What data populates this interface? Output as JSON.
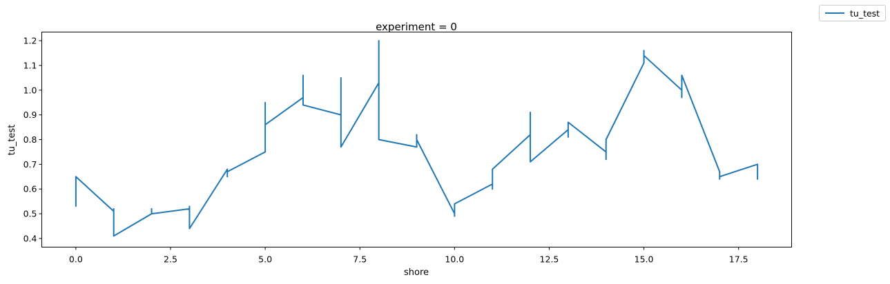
{
  "chart_data": {
    "type": "line",
    "title": "experiment = 0",
    "xlabel": "shore",
    "ylabel": "tu_test",
    "xlim": [
      -0.9,
      18.9
    ],
    "ylim": [
      0.365,
      1.235
    ],
    "xticks": [
      0.0,
      2.5,
      5.0,
      7.5,
      10.0,
      12.5,
      15.0,
      17.5
    ],
    "xtick_labels": [
      "0.0",
      "2.5",
      "5.0",
      "7.5",
      "10.0",
      "12.5",
      "15.0",
      "17.5"
    ],
    "yticks": [
      0.4,
      0.5,
      0.6,
      0.7,
      0.8,
      0.9,
      1.0,
      1.1,
      1.2
    ],
    "ytick_labels": [
      "0.4",
      "0.5",
      "0.6",
      "0.7",
      "0.8",
      "0.9",
      "1.0",
      "1.1",
      "1.2"
    ],
    "grid": false,
    "legend_position": "outside-top-right",
    "series": [
      {
        "name": "tu_test",
        "color": "#1f77b4",
        "x": [
          0,
          0,
          0,
          1,
          1,
          1,
          2,
          2,
          2,
          3,
          3,
          3,
          4,
          4,
          4,
          5,
          5,
          5,
          6,
          6,
          6,
          7,
          7,
          7,
          8,
          8,
          8,
          9,
          9,
          9,
          10,
          10,
          10,
          11,
          11,
          11,
          12,
          12,
          12,
          13,
          13,
          13,
          14,
          14,
          14,
          15,
          15,
          15,
          16,
          16,
          16,
          17,
          17,
          17,
          18,
          18,
          18
        ],
        "y": [
          0.53,
          0.65,
          0.65,
          0.51,
          0.52,
          0.41,
          0.5,
          0.52,
          0.5,
          0.52,
          0.53,
          0.44,
          0.68,
          0.65,
          0.67,
          0.75,
          0.95,
          0.86,
          0.97,
          1.06,
          0.94,
          0.9,
          1.05,
          0.77,
          1.03,
          1.2,
          0.8,
          0.77,
          0.82,
          0.8,
          0.5,
          0.49,
          0.54,
          0.62,
          0.6,
          0.68,
          0.82,
          0.91,
          0.71,
          0.84,
          0.81,
          0.87,
          0.75,
          0.72,
          0.8,
          1.11,
          1.16,
          1.14,
          1.0,
          0.97,
          1.06,
          0.67,
          0.64,
          0.65,
          0.7,
          0.64,
          0.7
        ]
      }
    ]
  }
}
